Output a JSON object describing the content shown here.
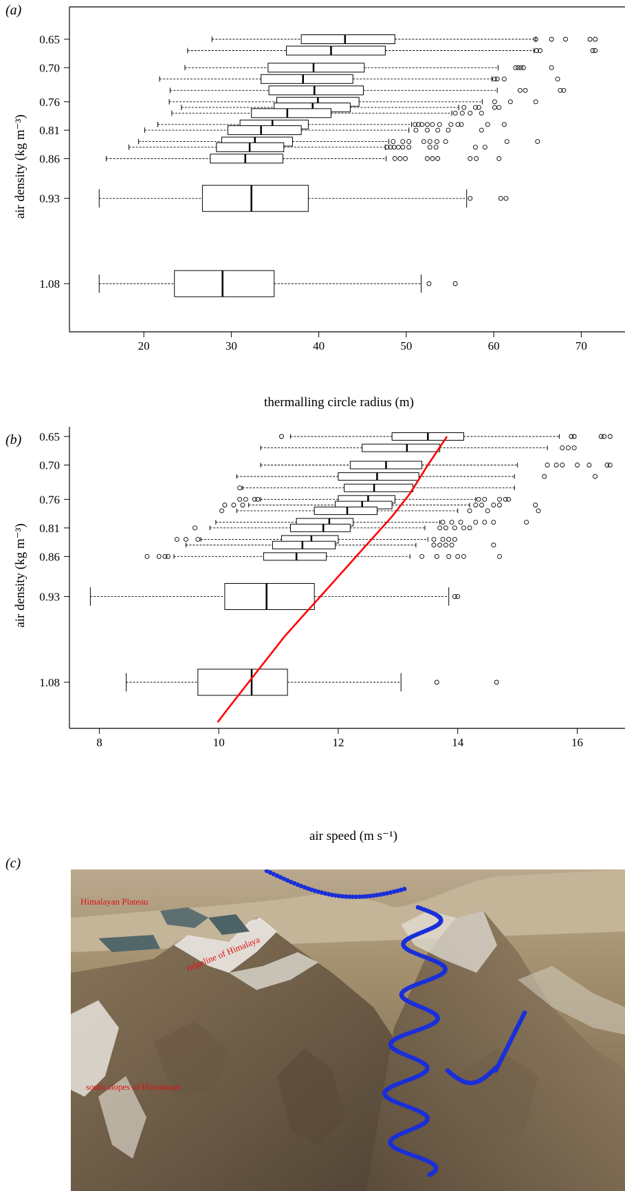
{
  "figure": {
    "panel_a_label": "(a)",
    "panel_b_label": "(b)",
    "panel_c_label": "(c)"
  },
  "chart_data": [
    {
      "type": "boxplot",
      "panel": "(a)",
      "xlabel": "thermalling circle radius (m)",
      "ylabel": "air density (kg m⁻³)",
      "xlim": [
        11.5,
        75
      ],
      "xticks": [
        20,
        30,
        40,
        50,
        60,
        70
      ],
      "ytick_labels": [
        "0.65",
        "0.70",
        "0.76",
        "0.81",
        "0.86",
        "0.93",
        "1.08"
      ],
      "grid": false,
      "boxes": [
        {
          "density": 0.65,
          "lo": 27.8,
          "q1": 38.0,
          "median": 43.0,
          "q3": 48.7,
          "hi": 64.8,
          "outliers": [
            64.8,
            66.6,
            68.2,
            71.0,
            71.6
          ]
        },
        {
          "density": 0.67,
          "lo": 25.0,
          "q1": 36.3,
          "median": 41.4,
          "q3": 47.6,
          "hi": 64.6,
          "outliers": [
            64.9,
            65.3,
            71.3,
            71.6
          ]
        },
        {
          "density": 0.7,
          "lo": 24.7,
          "q1": 34.2,
          "median": 39.4,
          "q3": 45.2,
          "hi": 60.5,
          "outliers": [
            62.5,
            62.8,
            63.1,
            63.4,
            66.6
          ]
        },
        {
          "density": 0.72,
          "lo": 21.8,
          "q1": 33.4,
          "median": 38.2,
          "q3": 43.9,
          "hi": 59.8,
          "outliers": [
            60.1,
            60.4,
            61.2,
            67.3
          ]
        },
        {
          "density": 0.74,
          "lo": 23.0,
          "q1": 34.3,
          "median": 39.5,
          "q3": 45.1,
          "hi": 60.4,
          "outliers": [
            63.0,
            63.6,
            67.6,
            68.0
          ]
        },
        {
          "density": 0.76,
          "lo": 22.9,
          "q1": 35.2,
          "median": 39.9,
          "q3": 44.6,
          "hi": 58.7,
          "outliers": [
            60.1,
            61.9,
            64.8
          ]
        },
        {
          "density": 0.77,
          "lo": 24.3,
          "q1": 34.9,
          "median": 39.3,
          "q3": 43.6,
          "hi": 56.0,
          "outliers": [
            56.6,
            57.9,
            58.3,
            60.1,
            60.6
          ]
        },
        {
          "density": 0.78,
          "lo": 23.2,
          "q1": 32.3,
          "median": 36.4,
          "q3": 41.4,
          "hi": 55.2,
          "outliers": [
            55.6,
            56.4,
            57.3,
            58.6
          ]
        },
        {
          "density": 0.8,
          "lo": 21.6,
          "q1": 31.0,
          "median": 34.7,
          "q3": 38.8,
          "hi": 50.6,
          "outliers": [
            51.0,
            51.4,
            51.8,
            52.4,
            53.0,
            53.8,
            55.1,
            55.9,
            56.3,
            59.3,
            61.2
          ]
        },
        {
          "density": 0.81,
          "lo": 20.1,
          "q1": 29.6,
          "median": 33.4,
          "q3": 38.0,
          "hi": 50.3,
          "outliers": [
            51.1,
            52.4,
            53.6,
            54.8,
            58.6
          ]
        },
        {
          "density": 0.83,
          "lo": 19.4,
          "q1": 28.9,
          "median": 32.7,
          "q3": 37.0,
          "hi": 48.0,
          "outliers": [
            48.5,
            49.6,
            50.3,
            52.0,
            52.7,
            53.5,
            54.5,
            61.5,
            65.0
          ]
        },
        {
          "density": 0.84,
          "lo": 18.3,
          "q1": 28.3,
          "median": 32.1,
          "q3": 36.0,
          "hi": 47.6,
          "outliers": [
            47.8,
            48.2,
            48.6,
            49.1,
            49.6,
            50.3,
            52.7,
            53.4,
            57.9,
            59.0
          ]
        },
        {
          "density": 0.86,
          "lo": 15.7,
          "q1": 27.6,
          "median": 31.6,
          "q3": 35.9,
          "hi": 47.7,
          "outliers": [
            48.7,
            49.3,
            49.9,
            52.4,
            53.0,
            53.6,
            57.3,
            58.0,
            60.6
          ]
        },
        {
          "density": 0.93,
          "lo": 14.9,
          "q1": 26.7,
          "median": 32.3,
          "q3": 38.8,
          "hi": 56.9,
          "outliers": [
            57.3,
            60.8,
            61.4
          ]
        },
        {
          "density": 1.08,
          "lo": 14.9,
          "q1": 23.5,
          "median": 29.0,
          "q3": 34.9,
          "hi": 51.7,
          "outliers": [
            52.6,
            55.6
          ]
        }
      ]
    },
    {
      "type": "boxplot",
      "panel": "(b)",
      "xlabel": "air speed (m s⁻¹)",
      "ylabel": "air density (kg m⁻³)",
      "xlim": [
        7.5,
        16.8
      ],
      "xticks": [
        8,
        10,
        12,
        14,
        16
      ],
      "ytick_labels": [
        "0.65",
        "0.70",
        "0.76",
        "0.81",
        "0.86",
        "0.93",
        "1.08"
      ],
      "grid": false,
      "curve_color": "#ff0000",
      "curve": {
        "x": [
          9.98,
          10.2,
          10.5,
          10.8,
          11.1,
          11.4,
          11.7,
          12.0,
          12.3,
          12.6,
          12.9,
          13.2,
          13.5,
          13.82
        ],
        "density": [
          1.15,
          1.12,
          1.08,
          1.04,
          1.0,
          0.965,
          0.93,
          0.895,
          0.86,
          0.825,
          0.79,
          0.75,
          0.7,
          0.65
        ]
      },
      "boxes": [
        {
          "density": 0.65,
          "lo": 11.2,
          "q1": 12.9,
          "median": 13.5,
          "q3": 14.1,
          "hi": 15.7,
          "outliers": [
            11.05,
            15.9,
            15.95,
            16.4,
            16.45,
            16.55
          ]
        },
        {
          "density": 0.67,
          "lo": 10.7,
          "q1": 12.4,
          "median": 13.15,
          "q3": 13.7,
          "hi": 15.5,
          "outliers": [
            15.75,
            15.85,
            15.95
          ]
        },
        {
          "density": 0.7,
          "lo": 10.7,
          "q1": 12.2,
          "median": 12.8,
          "q3": 13.4,
          "hi": 15.0,
          "outliers": [
            15.5,
            15.65,
            15.75,
            16.0,
            16.2,
            16.5,
            16.55
          ]
        },
        {
          "density": 0.72,
          "lo": 10.3,
          "q1": 12.0,
          "median": 12.65,
          "q3": 13.35,
          "hi": 14.95,
          "outliers": [
            15.45,
            16.3
          ]
        },
        {
          "density": 0.74,
          "lo": 10.4,
          "q1": 12.1,
          "median": 12.6,
          "q3": 13.25,
          "hi": 14.95,
          "outliers": [
            10.35
          ]
        },
        {
          "density": 0.76,
          "lo": 10.7,
          "q1": 12.0,
          "median": 12.5,
          "q3": 12.95,
          "hi": 14.3,
          "outliers": [
            10.35,
            10.45,
            10.6,
            10.65,
            14.35,
            14.45,
            14.7,
            14.8,
            14.85
          ]
        },
        {
          "density": 0.77,
          "lo": 10.5,
          "q1": 11.95,
          "median": 12.4,
          "q3": 12.9,
          "hi": 14.2,
          "outliers": [
            10.1,
            10.25,
            10.4,
            14.3,
            14.4,
            14.6,
            14.7,
            15.3
          ]
        },
        {
          "density": 0.78,
          "lo": 10.3,
          "q1": 11.6,
          "median": 12.15,
          "q3": 12.65,
          "hi": 14.0,
          "outliers": [
            10.05,
            14.2,
            14.5,
            15.35
          ]
        },
        {
          "density": 0.8,
          "lo": 9.95,
          "q1": 11.3,
          "median": 11.85,
          "q3": 12.25,
          "hi": 13.7,
          "outliers": [
            13.75,
            13.9,
            14.05,
            14.3,
            14.45,
            14.6,
            15.15
          ]
        },
        {
          "density": 0.81,
          "lo": 9.85,
          "q1": 11.2,
          "median": 11.75,
          "q3": 12.2,
          "hi": 13.45,
          "outliers": [
            9.6,
            13.7,
            13.8,
            13.95,
            14.1,
            14.2
          ]
        },
        {
          "density": 0.83,
          "lo": 9.7,
          "q1": 11.05,
          "median": 11.55,
          "q3": 12.0,
          "hi": 13.5,
          "outliers": [
            9.3,
            9.45,
            9.65,
            13.6,
            13.75,
            13.85,
            13.95
          ]
        },
        {
          "density": 0.84,
          "lo": 9.45,
          "q1": 10.9,
          "median": 11.4,
          "q3": 11.95,
          "hi": 13.3,
          "outliers": [
            13.6,
            13.7,
            13.8,
            13.9,
            14.6
          ]
        },
        {
          "density": 0.86,
          "lo": 9.25,
          "q1": 10.75,
          "median": 11.3,
          "q3": 11.8,
          "hi": 13.2,
          "outliers": [
            8.8,
            9.0,
            9.1,
            9.15,
            13.4,
            13.65,
            13.85,
            14.0,
            14.1,
            14.7
          ]
        },
        {
          "density": 0.93,
          "lo": 7.85,
          "q1": 10.1,
          "median": 10.8,
          "q3": 11.6,
          "hi": 13.85,
          "outliers": [
            13.95,
            14.0
          ]
        },
        {
          "density": 1.08,
          "lo": 8.45,
          "q1": 9.65,
          "median": 10.55,
          "q3": 11.15,
          "hi": 13.05,
          "outliers": [
            13.65,
            14.65
          ]
        }
      ]
    }
  ],
  "map": {
    "labels": [
      "Himalayan Plateau",
      "ridgeline of Himalaya",
      "south slopes of Himalayan"
    ],
    "label_color": "#e01010",
    "track_color": "#1a2fd8"
  }
}
